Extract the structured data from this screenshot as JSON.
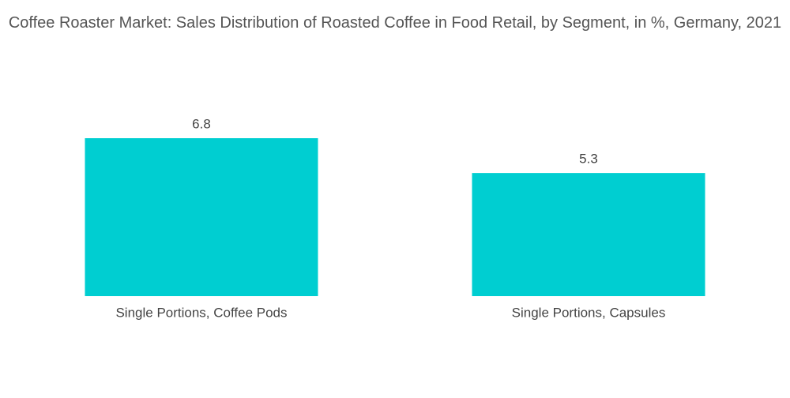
{
  "chart_data": {
    "type": "bar",
    "title": "Coffee Roaster Market: Sales Distribution of Roasted Coffee in Food Retail, by Segment, in %, Germany, 2021",
    "categories": [
      "Single Portions, Coffee Pods",
      "Single Portions, Capsules"
    ],
    "values": [
      6.8,
      5.3
    ],
    "color": "#00ced1"
  }
}
